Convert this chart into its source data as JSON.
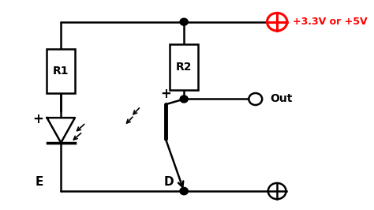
{
  "bg_color": "#ffffff",
  "line_color": "#000000",
  "red_color": "#ff0000",
  "title": "+3.3V or +5V",
  "label_R1": "R1",
  "label_R2": "R2",
  "label_E": "E",
  "label_D": "D",
  "label_Out": "Out",
  "label_plus1": "+",
  "label_plus2": "+"
}
